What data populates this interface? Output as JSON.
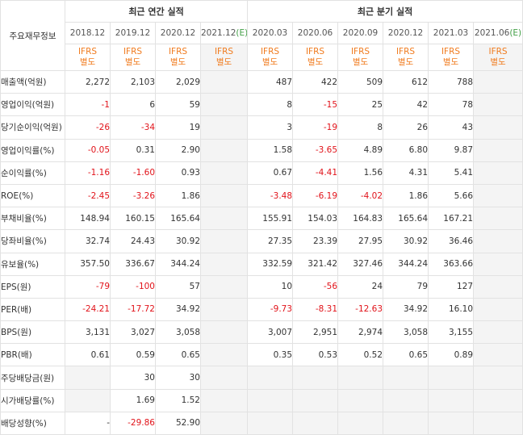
{
  "header": {
    "row_title": "주요재무정보",
    "annual_group": "최근 연간 실적",
    "quarter_group": "최근 분기 실적",
    "annual_periods": [
      "2018.12",
      "2019.12",
      "2020.12",
      "2021.12"
    ],
    "quarter_periods": [
      "2020.03",
      "2020.06",
      "2020.09",
      "2020.12",
      "2021.03",
      "2021.06"
    ],
    "estimate_mark": "(E)",
    "ifrs_line1": "IFRS",
    "ifrs_line2": "별도"
  },
  "rows": [
    {
      "label": "매출액(억원)",
      "annual": [
        "2,272",
        "2,103",
        "2,029",
        ""
      ],
      "quarter": [
        "487",
        "422",
        "509",
        "612",
        "788",
        ""
      ]
    },
    {
      "label": "영업이익(억원)",
      "annual": [
        "-1",
        "6",
        "59",
        ""
      ],
      "quarter": [
        "8",
        "-15",
        "25",
        "42",
        "78",
        ""
      ]
    },
    {
      "label": "당기순이익(억원)",
      "annual": [
        "-26",
        "-34",
        "19",
        ""
      ],
      "quarter": [
        "3",
        "-19",
        "8",
        "26",
        "43",
        ""
      ]
    },
    {
      "label": "영업이익률(%)",
      "annual": [
        "-0.05",
        "0.31",
        "2.90",
        ""
      ],
      "quarter": [
        "1.58",
        "-3.65",
        "4.89",
        "6.80",
        "9.87",
        ""
      ]
    },
    {
      "label": "순이익률(%)",
      "annual": [
        "-1.16",
        "-1.60",
        "0.93",
        ""
      ],
      "quarter": [
        "0.67",
        "-4.41",
        "1.56",
        "4.31",
        "5.41",
        ""
      ]
    },
    {
      "label": "ROE(%)",
      "annual": [
        "-2.45",
        "-3.26",
        "1.86",
        ""
      ],
      "quarter": [
        "-3.48",
        "-6.19",
        "-4.02",
        "1.86",
        "5.66",
        ""
      ]
    },
    {
      "label": "부채비율(%)",
      "annual": [
        "148.94",
        "160.15",
        "165.64",
        ""
      ],
      "quarter": [
        "155.91",
        "154.03",
        "164.83",
        "165.64",
        "167.21",
        ""
      ]
    },
    {
      "label": "당좌비율(%)",
      "annual": [
        "32.74",
        "24.43",
        "30.92",
        ""
      ],
      "quarter": [
        "27.35",
        "23.39",
        "27.95",
        "30.92",
        "36.46",
        ""
      ]
    },
    {
      "label": "유보율(%)",
      "annual": [
        "357.50",
        "336.67",
        "344.24",
        ""
      ],
      "quarter": [
        "332.59",
        "321.42",
        "327.46",
        "344.24",
        "363.66",
        ""
      ]
    },
    {
      "label": "EPS(원)",
      "annual": [
        "-79",
        "-100",
        "57",
        ""
      ],
      "quarter": [
        "10",
        "-56",
        "24",
        "79",
        "127",
        ""
      ]
    },
    {
      "label": "PER(배)",
      "annual": [
        "-24.21",
        "-17.72",
        "34.92",
        ""
      ],
      "quarter": [
        "-9.73",
        "-8.31",
        "-12.63",
        "34.92",
        "16.10",
        ""
      ]
    },
    {
      "label": "BPS(원)",
      "annual": [
        "3,131",
        "3,027",
        "3,058",
        ""
      ],
      "quarter": [
        "3,007",
        "2,951",
        "2,974",
        "3,058",
        "3,155",
        ""
      ]
    },
    {
      "label": "PBR(배)",
      "annual": [
        "0.61",
        "0.59",
        "0.65",
        ""
      ],
      "quarter": [
        "0.35",
        "0.53",
        "0.52",
        "0.65",
        "0.89",
        ""
      ]
    },
    {
      "label": "주당배당금(원)",
      "annual": [
        "",
        "30",
        "30",
        ""
      ],
      "quarter": [
        "",
        "",
        "",
        "",
        "",
        ""
      ]
    },
    {
      "label": "시가배당률(%)",
      "annual": [
        "",
        "1.69",
        "1.52",
        ""
      ],
      "quarter": [
        "",
        "",
        "",
        "",
        "",
        ""
      ]
    },
    {
      "label": "배당성향(%)",
      "annual": [
        "-",
        "-29.86",
        "52.90",
        ""
      ],
      "quarter": [
        "",
        "",
        "",
        "",
        "",
        ""
      ]
    }
  ]
}
